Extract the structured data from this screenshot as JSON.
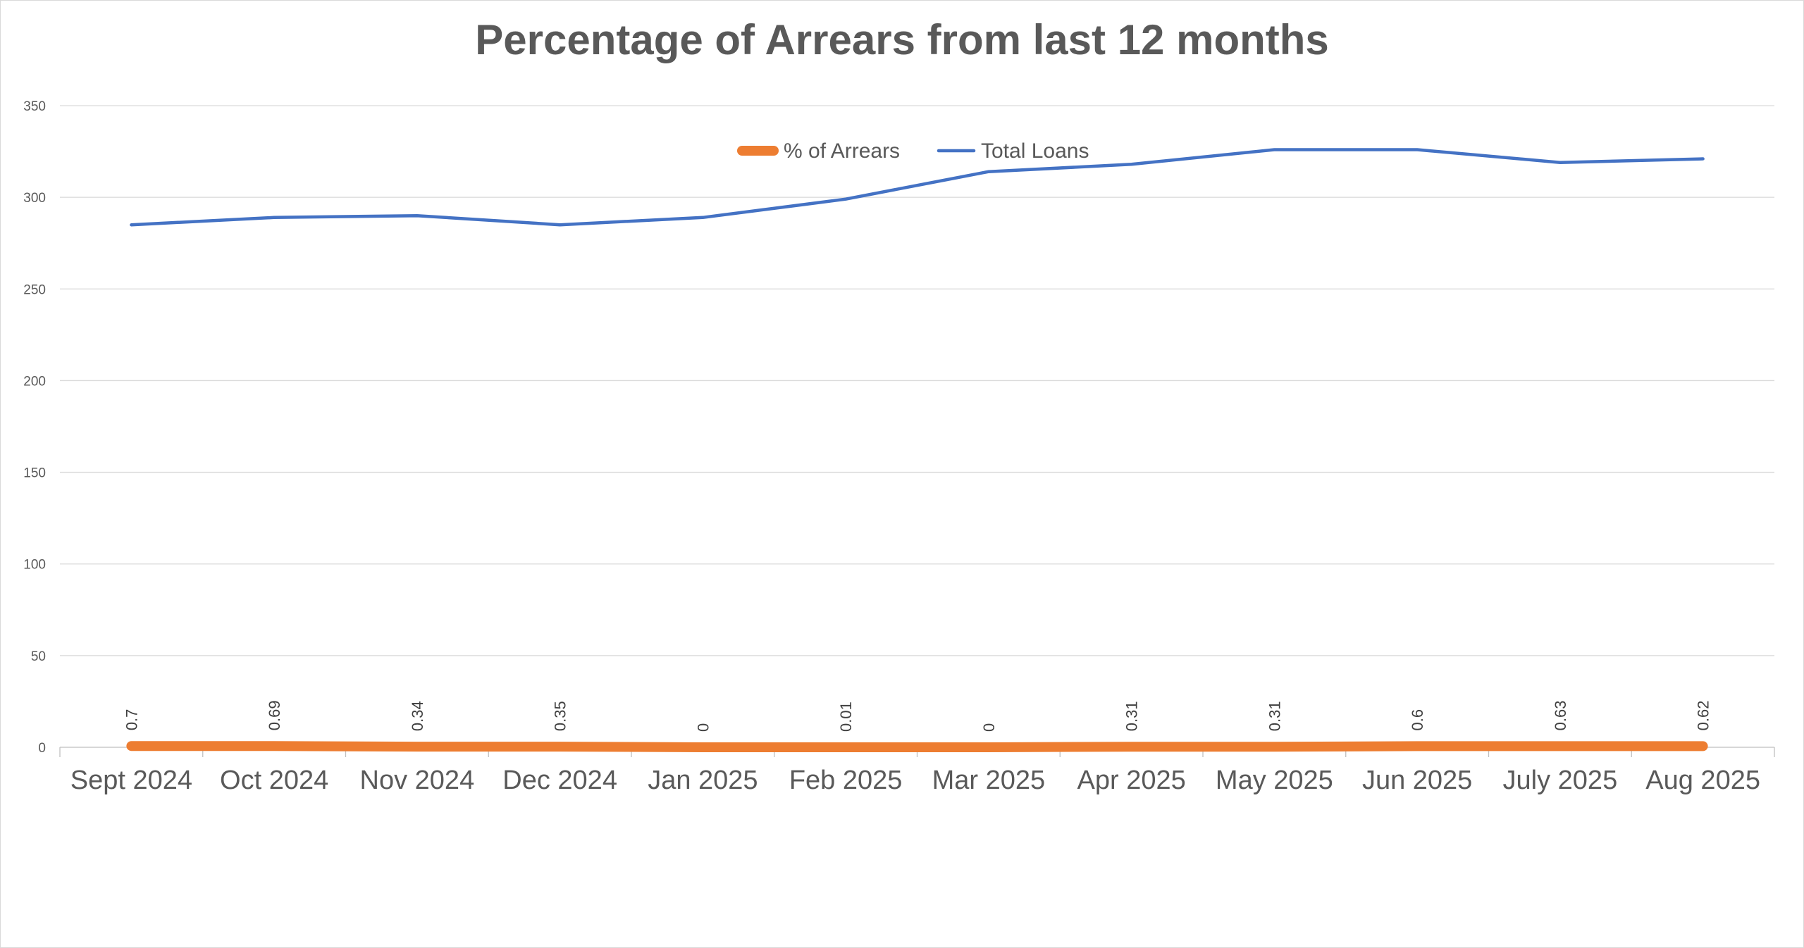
{
  "chart_data": {
    "type": "line",
    "title": "Percentage of Arrears from last 12 months",
    "categories": [
      "Sept 2024",
      "Oct 2024",
      "Nov 2024",
      "Dec 2024",
      "Jan 2025",
      "Feb 2025",
      "Mar 2025",
      "Apr 2025",
      "May 2025",
      "Jun 2025",
      "July 2025",
      "Aug 2025"
    ],
    "series": [
      {
        "name": "% of Arrears",
        "color": "#ED7D31",
        "values": [
          0.7,
          0.69,
          0.34,
          0.35,
          0,
          0.01,
          0,
          0.31,
          0.31,
          0.6,
          0.63,
          0.62
        ],
        "data_labels": [
          "0.7",
          "0.69",
          "0.34",
          "0.35",
          "0",
          "0.01",
          "0",
          "0.31",
          "0.31",
          "0.6",
          "0.63",
          "0.62"
        ]
      },
      {
        "name": "Total Loans",
        "color": "#4472C4",
        "values": [
          285,
          289,
          290,
          285,
          289,
          299,
          314,
          318,
          326,
          326,
          319,
          321
        ]
      }
    ],
    "ylim": [
      0,
      350
    ],
    "yticks": [
      0,
      50,
      100,
      150,
      200,
      250,
      300,
      350
    ],
    "ytick_labels": [
      "0",
      "50",
      "100",
      "150",
      "200",
      "250",
      "300",
      "350"
    ],
    "xlabel": "",
    "ylabel": "",
    "grid": true,
    "legend_position": "top-center"
  }
}
